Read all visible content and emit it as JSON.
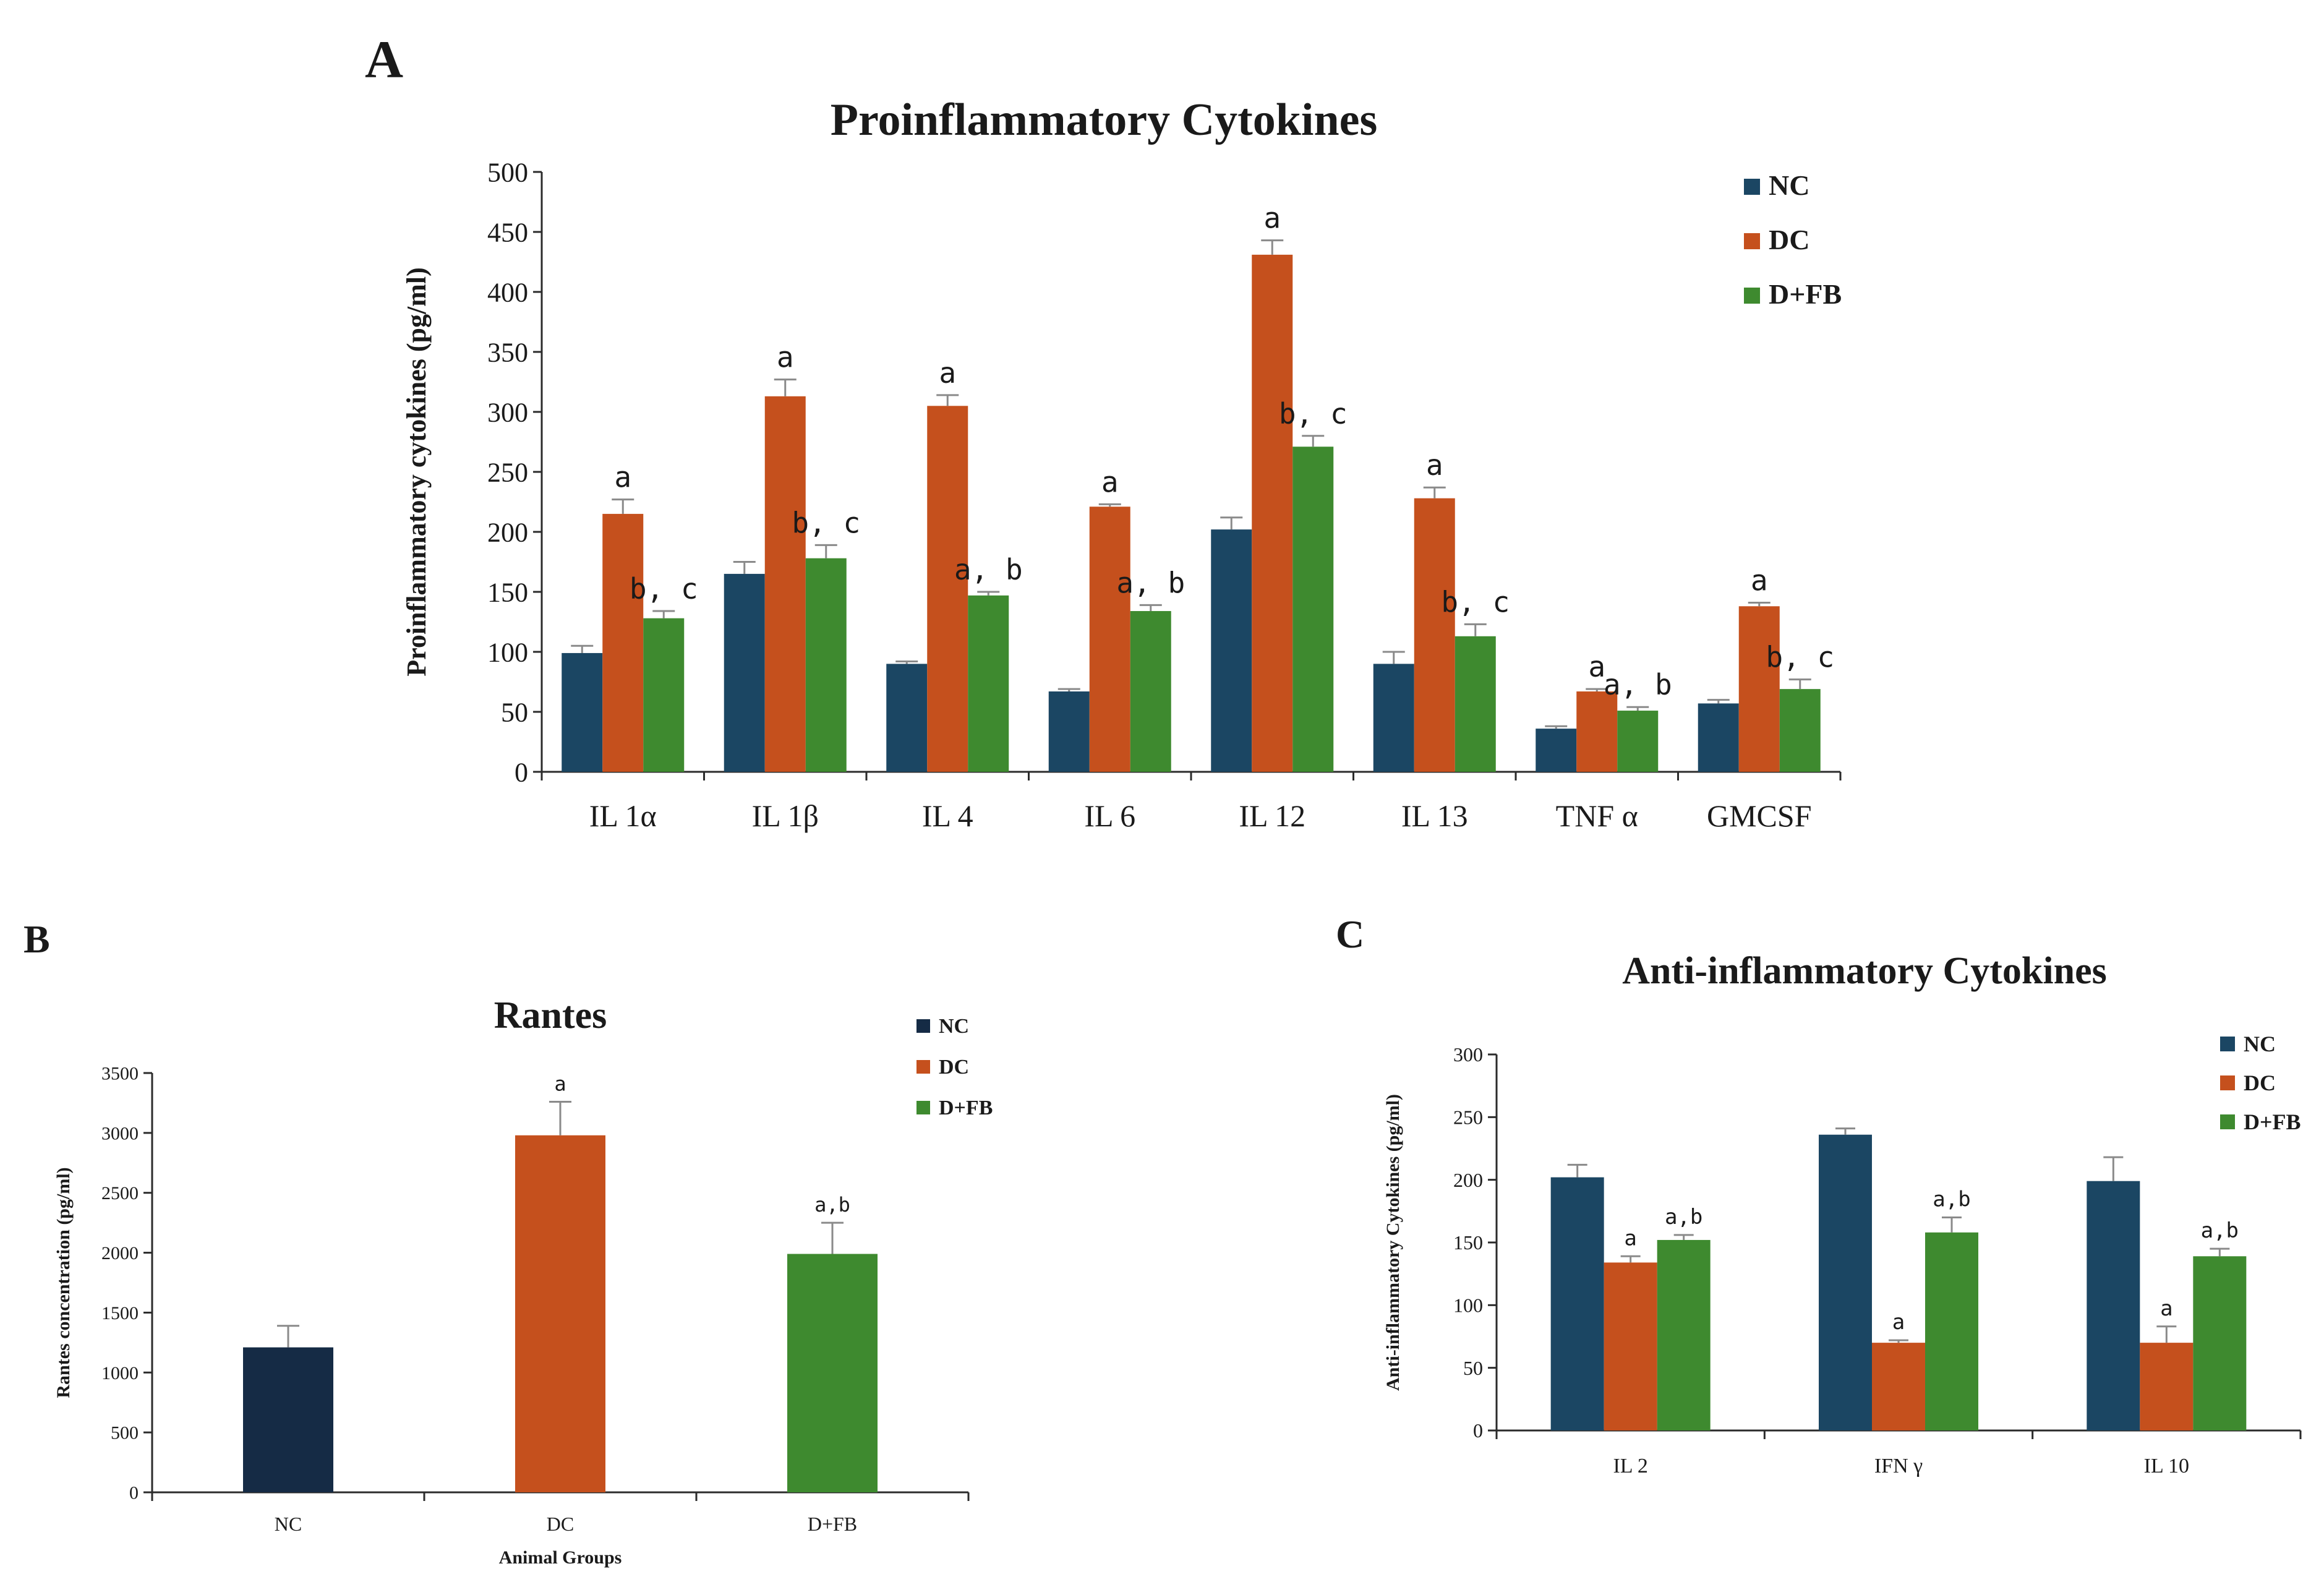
{
  "panels": {
    "A": {
      "letter": "A"
    },
    "B": {
      "letter": "B"
    },
    "C": {
      "letter": "C"
    }
  },
  "colors": {
    "NC": "#1b4663",
    "NC_rantes": "#152b45",
    "DC": "#c5501d",
    "DFB": "#3e8a2f",
    "errorbar": "#8a8a8a",
    "axis": "#2b2b2b"
  },
  "chart_data": [
    {
      "id": "A",
      "type": "bar",
      "title": "Proinflammatory  Cytokines",
      "xlabel": "",
      "ylabel": "Proinflammatory  cytokines (pg/ml)",
      "ylim": [
        0,
        500
      ],
      "yticks": [
        "0",
        "50",
        "100",
        "150",
        "200",
        "250",
        "300",
        "350",
        "400",
        "450",
        "500"
      ],
      "legend_position": "top-right",
      "categories": [
        "IL  1α",
        "IL  1β",
        "IL  4",
        "IL  6",
        "IL  12",
        "IL  13",
        "TNF  α",
        "GMCSF"
      ],
      "series": [
        {
          "name": "NC",
          "color_key": "NC",
          "values": [
            99,
            165,
            90,
            67,
            202,
            90,
            36,
            57
          ],
          "errors": [
            6,
            10,
            2,
            2,
            10,
            10,
            2,
            3
          ],
          "labels": [
            "",
            "",
            "",
            "",
            "",
            "",
            "",
            ""
          ]
        },
        {
          "name": "DC",
          "color_key": "DC",
          "values": [
            215,
            313,
            305,
            221,
            431,
            228,
            67,
            138
          ],
          "errors": [
            12,
            14,
            9,
            2,
            12,
            9,
            2,
            3
          ],
          "labels": [
            "a",
            "a",
            "a",
            "a",
            "a",
            "a",
            "a",
            "a"
          ]
        },
        {
          "name": "D+FB",
          "color_key": "DFB",
          "values": [
            128,
            178,
            147,
            134,
            271,
            113,
            51,
            69
          ],
          "errors": [
            6,
            11,
            3,
            5,
            9,
            10,
            3,
            8
          ],
          "labels": [
            "b, c",
            "b, c",
            "a, b",
            "a, b",
            "b, c",
            "b, c",
            "a, b",
            "b, c"
          ]
        }
      ]
    },
    {
      "id": "B",
      "type": "bar",
      "title": "Rantes",
      "xlabel": "Animal  Groups",
      "ylabel": "Rantes concentration  (pg/ml)",
      "ylim": [
        0,
        3500
      ],
      "yticks": [
        "0",
        "500",
        "1000",
        "1500",
        "2000",
        "2500",
        "3000",
        "3500"
      ],
      "legend_position": "top-right",
      "legend": [
        "NC",
        "DC",
        "D+FB"
      ],
      "categories": [
        "NC",
        "DC",
        "D+FB"
      ],
      "values": [
        1210,
        2980,
        1990
      ],
      "errors": [
        180,
        280,
        260
      ],
      "labels": [
        "",
        "a",
        "a,b"
      ],
      "color_keys": [
        "NC_rantes",
        "DC",
        "DFB"
      ]
    },
    {
      "id": "C",
      "type": "bar",
      "title": "Anti-inflammatory  Cytokines",
      "xlabel": "",
      "ylabel": "Anti-inflammatory  Cytokines  (pg/ml)",
      "ylim": [
        0,
        300
      ],
      "yticks": [
        "0",
        "50",
        "100",
        "150",
        "200",
        "250",
        "300"
      ],
      "legend_position": "top-right",
      "categories": [
        "IL  2",
        "IFN  γ",
        "IL  10"
      ],
      "series": [
        {
          "name": "NC",
          "color_key": "NC",
          "values": [
            202,
            236,
            199
          ],
          "errors": [
            10,
            5,
            19
          ],
          "labels": [
            "",
            "",
            ""
          ]
        },
        {
          "name": "DC",
          "color_key": "DC",
          "values": [
            134,
            70,
            70
          ],
          "errors": [
            5,
            2,
            13
          ],
          "labels": [
            "a",
            "a",
            "a"
          ]
        },
        {
          "name": "D+FB",
          "color_key": "DFB",
          "values": [
            152,
            158,
            139
          ],
          "errors": [
            4,
            12,
            6
          ],
          "labels": [
            "a,b",
            "a,b",
            "a,b"
          ]
        }
      ]
    }
  ]
}
